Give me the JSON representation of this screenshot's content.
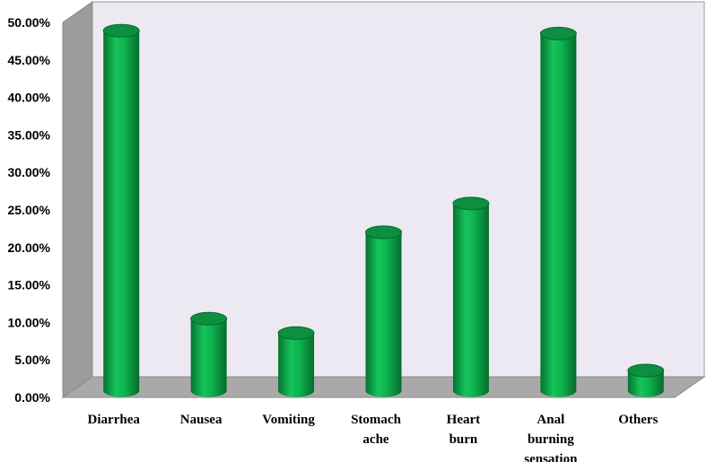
{
  "chart_data": {
    "type": "bar",
    "title": "",
    "xlabel": "",
    "ylabel": "",
    "categories": [
      "Diarrhea",
      "Nausea",
      "Vomiting",
      "Stomach ache",
      "Heart burn",
      "Anal burning sensation",
      "Others"
    ],
    "category_lines": [
      [
        "Diarrhea"
      ],
      [
        "Nausea"
      ],
      [
        "Vomiting"
      ],
      [
        "Stomach",
        "ache"
      ],
      [
        "Heart",
        "burn"
      ],
      [
        "Anal",
        "burning",
        "sensation"
      ],
      [
        "Others"
      ]
    ],
    "values": [
      50.0,
      10.0,
      8.0,
      22.0,
      26.0,
      49.6,
      2.8
    ],
    "y_ticks": [
      "0.00%",
      "5.00%",
      "10.00%",
      "15.00%",
      "20.00%",
      "25.00%",
      "30.00%",
      "35.00%",
      "40.00%",
      "45.00%",
      "50.00%"
    ],
    "ylim": [
      0,
      50
    ],
    "grid": false,
    "legend": "none",
    "colors": {
      "bar": "#0aa84a",
      "bar_dark": "#056b2c",
      "bar_light": "#3fd06f",
      "top": "#0c8f3e",
      "wall": "#ece9f2",
      "left_wall": "#9a9a9a",
      "floor": "#a6a6a6"
    }
  }
}
